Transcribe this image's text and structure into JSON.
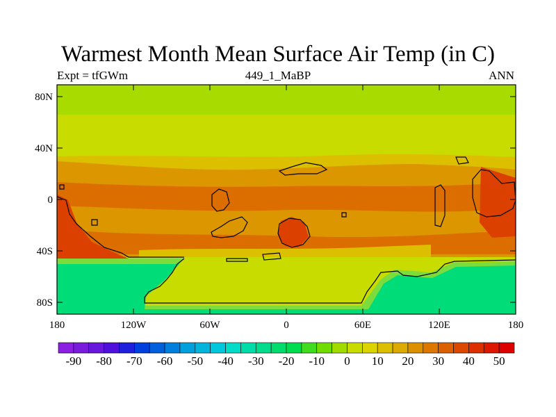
{
  "title": "Warmest Month Mean Surface Air Temp (in C)",
  "left_subtitle": "Expt = tfGWm",
  "center_subtitle": "449_1_MaBP",
  "right_subtitle": "ANN",
  "map": {
    "lat_ticks": [
      "80N",
      "40N",
      "0",
      "40S",
      "80S"
    ],
    "lon_ticks": [
      "180",
      "120W",
      "60W",
      "0",
      "60E",
      "120E",
      "180"
    ],
    "field_colors": {
      "polar_north": "#a8dc00",
      "mid_north": "#c8dc00",
      "subtrop_north": "#dcc000",
      "tropics": "#dc9600",
      "equatorial_land": "#dc6e00",
      "hot_land": "#dc4000",
      "south_mid": "#c8dc00",
      "antarctic": "#00dc78",
      "antarctic_edge": "#7cdc3c",
      "coastline": "#000000"
    }
  },
  "colorbar": {
    "labels": [
      "-90",
      "-80",
      "-70",
      "-60",
      "-50",
      "-40",
      "-30",
      "-20",
      "-10",
      "0",
      "10",
      "20",
      "30",
      "40",
      "50"
    ],
    "colors": [
      "#8c20e0",
      "#7a1cdc",
      "#6818dc",
      "#5010dc",
      "#2020dc",
      "#0040dc",
      "#0060dc",
      "#0080dc",
      "#00a0dc",
      "#00b4dc",
      "#00c8dc",
      "#00dcc8",
      "#00dcaa",
      "#00dc8c",
      "#00dc6e",
      "#00dc50",
      "#40dc20",
      "#70dc00",
      "#a0dc00",
      "#c8dc00",
      "#dcd400",
      "#dcc000",
      "#dcaa00",
      "#dc9000",
      "#dc7800",
      "#dc6000",
      "#dc4800",
      "#dc3000",
      "#dc1800",
      "#dc0000"
    ]
  }
}
